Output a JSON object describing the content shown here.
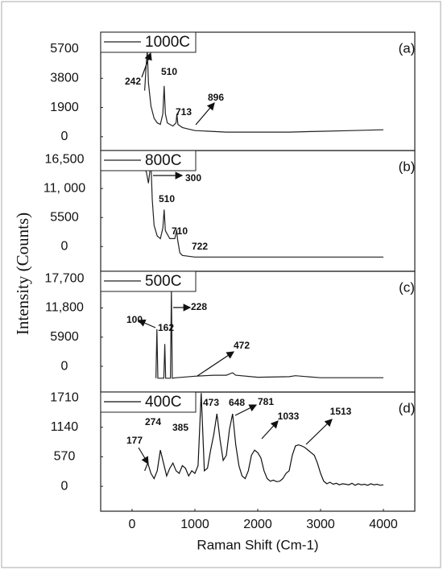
{
  "chart_data": [
    {
      "type": "line",
      "ylabel": "Intensity (Counts)",
      "panel_label": "(a)",
      "xlim": [
        -500,
        4500
      ],
      "ylim": [
        -900,
        6800
      ],
      "yticks": [
        0,
        1900,
        3800,
        5700
      ],
      "x": [
        200,
        230,
        242,
        260,
        300,
        350,
        400,
        450,
        490,
        510,
        530,
        560,
        600,
        650,
        700,
        713,
        730,
        800,
        896,
        1000,
        1500,
        2000,
        2500,
        3000,
        3500,
        4000
      ],
      "series": [
        {
          "name": "1000C",
          "color": "#222222",
          "values": [
            3000,
            5000,
            5600,
            3500,
            2000,
            1200,
            900,
            800,
            1500,
            3300,
            1500,
            900,
            800,
            700,
            900,
            1500,
            800,
            600,
            500,
            400,
            300,
            300,
            300,
            350,
            400,
            450
          ]
        }
      ],
      "annotations": [
        "242",
        "510",
        "713",
        "896"
      ]
    },
    {
      "type": "line",
      "panel_label": "(b)",
      "xlim": [
        -500,
        4500
      ],
      "ylim": [
        -4700,
        18200
      ],
      "yticks": [
        {
          "value": 0,
          "label": "0"
        },
        {
          "value": 5500,
          "label": "5500"
        },
        {
          "value": 11000,
          "label": "11, 000"
        },
        {
          "value": 16500,
          "label": "16,500"
        }
      ],
      "x": [
        200,
        230,
        260,
        300,
        320,
        350,
        400,
        450,
        490,
        510,
        530,
        600,
        680,
        700,
        710,
        722,
        760,
        800,
        1000,
        2000,
        3000,
        4000
      ],
      "series": [
        {
          "name": "800C",
          "color": "#222222",
          "values": [
            15000,
            14000,
            12000,
            16000,
            9000,
            4000,
            2000,
            1500,
            3500,
            7000,
            3000,
            1500,
            1500,
            2500,
            3200,
            1500,
            -1200,
            -1700,
            -2000,
            -2000,
            -2000,
            -2000
          ]
        }
      ],
      "annotations": [
        "300",
        "510",
        "710",
        "722"
      ]
    },
    {
      "type": "line",
      "panel_label": "(c)",
      "xlim": [
        -500,
        4500
      ],
      "ylim": [
        -5200,
        19200
      ],
      "yticks": [
        {
          "value": 0,
          "label": "0"
        },
        {
          "value": 5900,
          "label": "5900"
        },
        {
          "value": 11800,
          "label": "11,800"
        },
        {
          "value": 17700,
          "label": "17,700"
        }
      ],
      "x": [
        380,
        395,
        410,
        505,
        520,
        535,
        610,
        625,
        640,
        700,
        1000,
        1300,
        1500,
        1600,
        1650,
        2000,
        2500,
        2600,
        3000,
        4000
      ],
      "series": [
        {
          "name": "500C",
          "color": "#222222",
          "values": [
            -2400,
            7500,
            -2400,
            -2400,
            4500,
            -2400,
            -2400,
            15500,
            -2400,
            -2300,
            -2000,
            -1800,
            -1800,
            -1300,
            -1800,
            -2200,
            -2100,
            -1900,
            -2300,
            -2300
          ]
        }
      ],
      "annotations": [
        "100",
        "162",
        "228",
        "472"
      ]
    },
    {
      "type": "line",
      "panel_label": "(d)",
      "xlabel": "Raman Shift (Cm-1)",
      "xlim": [
        -500,
        4500
      ],
      "xticks": [
        0,
        1000,
        2000,
        3000,
        4000
      ],
      "ylim": [
        -480,
        1820
      ],
      "yticks": [
        0,
        570,
        1140,
        1710
      ],
      "x": [
        200,
        250,
        300,
        350,
        400,
        450,
        500,
        550,
        600,
        650,
        700,
        750,
        800,
        850,
        900,
        950,
        1000,
        1050,
        1100,
        1150,
        1200,
        1250,
        1300,
        1350,
        1400,
        1450,
        1500,
        1550,
        1600,
        1650,
        1700,
        1750,
        1800,
        1850,
        1900,
        1950,
        2000,
        2050,
        2100,
        2150,
        2200,
        2250,
        2300,
        2350,
        2400,
        2450,
        2500,
        2550,
        2600,
        2650,
        2700,
        2750,
        2800,
        2850,
        2900,
        2950,
        3000,
        3050,
        3100,
        3150,
        3200,
        3250,
        3300,
        3350,
        3400,
        3450,
        3500,
        3550,
        3600,
        3650,
        3700,
        3750,
        3800,
        3850,
        3900,
        3950,
        4000
      ],
      "series": [
        {
          "name": "400C",
          "color": "#111111",
          "values": [
            300,
            450,
            250,
            150,
            300,
            700,
            450,
            200,
            350,
            450,
            300,
            250,
            400,
            350,
            200,
            300,
            250,
            400,
            1800,
            300,
            350,
            700,
            1000,
            1400,
            900,
            500,
            600,
            1100,
            1400,
            800,
            400,
            200,
            150,
            300,
            600,
            700,
            650,
            550,
            300,
            150,
            100,
            120,
            90,
            100,
            150,
            250,
            300,
            600,
            780,
            800,
            780,
            750,
            700,
            650,
            600,
            450,
            250,
            100,
            50,
            80,
            40,
            60,
            30,
            50,
            40,
            30,
            60,
            20,
            50,
            30,
            40,
            20,
            50,
            30,
            40,
            20,
            30
          ]
        }
      ],
      "annotations": [
        "177",
        "274",
        "385",
        "473",
        "648",
        "781",
        "1033",
        "1513"
      ]
    }
  ]
}
